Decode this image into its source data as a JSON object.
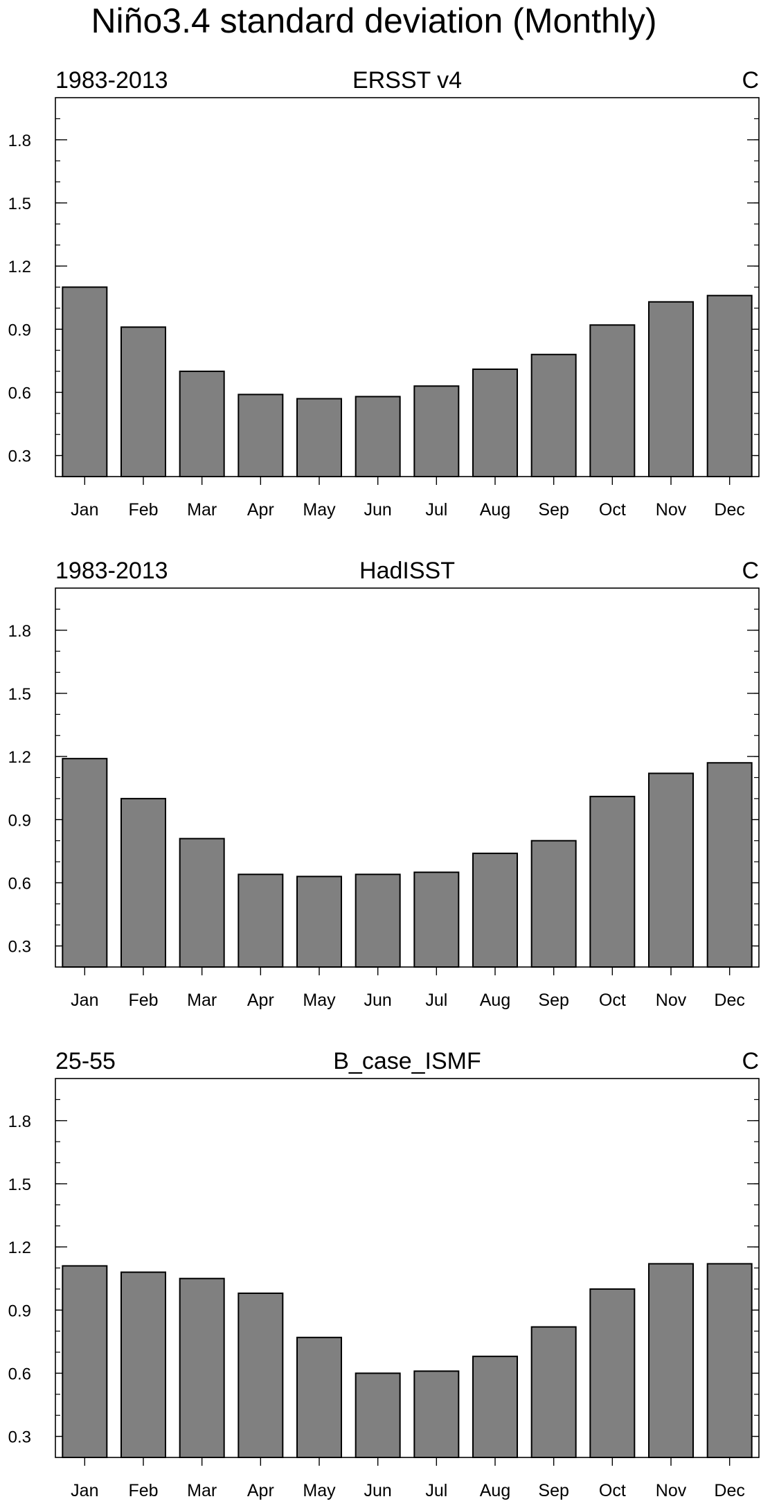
{
  "title": "Niño3.4 standard deviation (Monthly)",
  "chart_data": [
    {
      "type": "bar",
      "title": "ERSST v4",
      "left_label": "1983-2013",
      "units": "C",
      "categories": [
        "Jan",
        "Feb",
        "Mar",
        "Apr",
        "May",
        "Jun",
        "Jul",
        "Aug",
        "Sep",
        "Oct",
        "Nov",
        "Dec"
      ],
      "values": [
        1.1,
        0.91,
        0.7,
        0.59,
        0.57,
        0.58,
        0.63,
        0.71,
        0.78,
        0.92,
        1.03,
        1.06
      ],
      "ylim": [
        0.2,
        2.0
      ],
      "yticks": [
        "0.3",
        "0.6",
        "0.9",
        "1.2",
        "1.5",
        "1.8"
      ],
      "bar_color": "#808080"
    },
    {
      "type": "bar",
      "title": "HadISST",
      "left_label": "1983-2013",
      "units": "C",
      "categories": [
        "Jan",
        "Feb",
        "Mar",
        "Apr",
        "May",
        "Jun",
        "Jul",
        "Aug",
        "Sep",
        "Oct",
        "Nov",
        "Dec"
      ],
      "values": [
        1.19,
        1.0,
        0.81,
        0.64,
        0.63,
        0.64,
        0.65,
        0.74,
        0.8,
        1.01,
        1.12,
        1.17
      ],
      "ylim": [
        0.2,
        2.0
      ],
      "yticks": [
        "0.3",
        "0.6",
        "0.9",
        "1.2",
        "1.5",
        "1.8"
      ],
      "bar_color": "#808080"
    },
    {
      "type": "bar",
      "title": "B_case_ISMF",
      "left_label": "25-55",
      "units": "C",
      "categories": [
        "Jan",
        "Feb",
        "Mar",
        "Apr",
        "May",
        "Jun",
        "Jul",
        "Aug",
        "Sep",
        "Oct",
        "Nov",
        "Dec"
      ],
      "values": [
        1.11,
        1.08,
        1.05,
        0.98,
        0.77,
        0.6,
        0.61,
        0.68,
        0.82,
        1.0,
        1.12,
        1.12
      ],
      "ylim": [
        0.2,
        2.0
      ],
      "yticks": [
        "0.3",
        "0.6",
        "0.9",
        "1.2",
        "1.5",
        "1.8"
      ],
      "bar_color": "#808080"
    }
  ]
}
